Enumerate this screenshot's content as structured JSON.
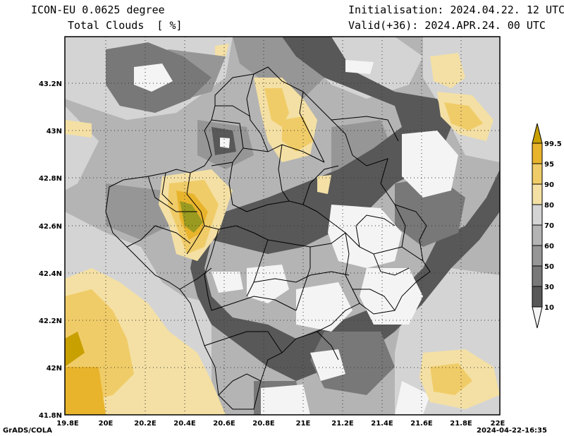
{
  "header": {
    "model": "ICON-EU 0.0625 degree",
    "variable": "Total Clouds  [ %]",
    "init": "Initialisation: 2024.04.22. 12 UTC",
    "valid": "Valid(+36): 2024.APR.24. 00 UTC"
  },
  "footer": {
    "credit": "GrADS/COLA",
    "timestamp": "2024-04-22-16:35"
  },
  "map": {
    "lon_labels": [
      "19.8E",
      "20E",
      "20.2E",
      "20.4E",
      "20.6E",
      "20.8E",
      "21E",
      "21.2E",
      "21.4E",
      "21.6E",
      "21.8E",
      "22E"
    ],
    "lat_labels": [
      "43.2N",
      "43N",
      "42.8N",
      "42.6N",
      "42.4N",
      "42.2N",
      "42N",
      "41.8N"
    ]
  },
  "legend": {
    "labels": [
      "99.5",
      "95",
      "90",
      "80",
      "70",
      "60",
      "50",
      "30",
      "10"
    ],
    "colors": [
      "#c8a000",
      "#e8b42c",
      "#f0cc68",
      "#f4e0a4",
      "#d4d4d4",
      "#b4b4b4",
      "#969696",
      "#787878",
      "#585858",
      "#f4f4f4"
    ]
  }
}
